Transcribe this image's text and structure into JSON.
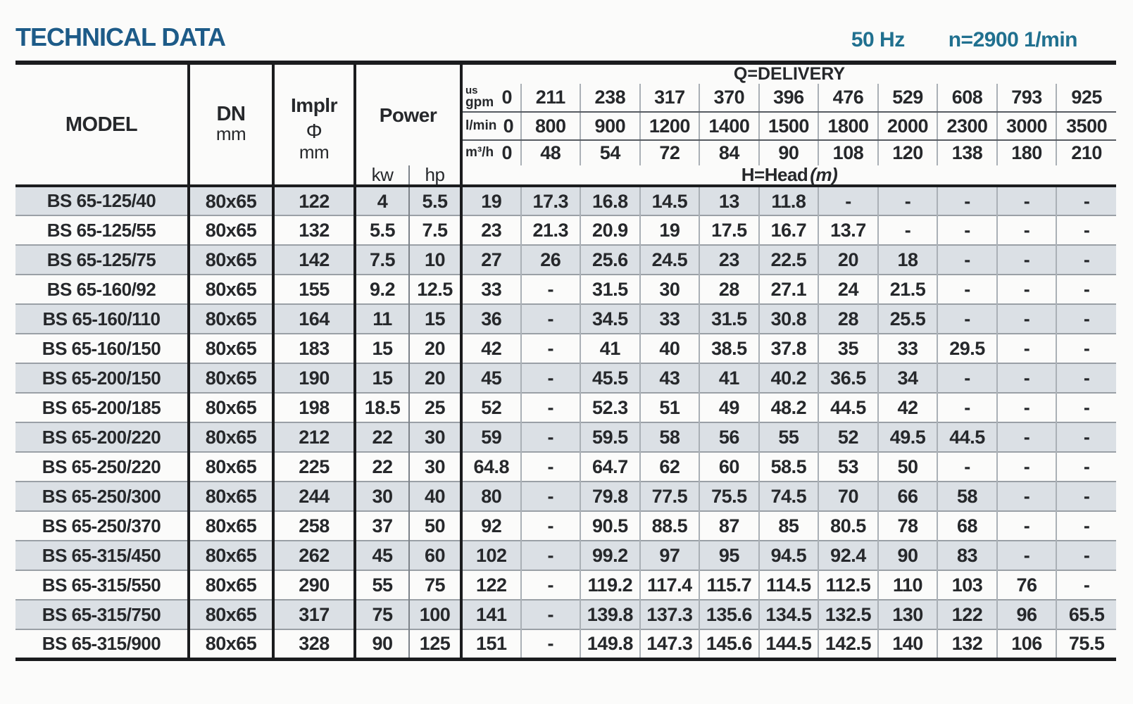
{
  "header": {
    "title": "TECHNICAL DATA",
    "frequency": "50 Hz",
    "speed": "n=2900 1/min"
  },
  "table": {
    "model_header": "MODEL",
    "dn_header": "DN",
    "dn_unit": "mm",
    "implr_header": "Implr",
    "implr_symbol": "Φ",
    "implr_unit": "mm",
    "power_header": "Power",
    "power_kw": "kw",
    "power_hp": "hp",
    "delivery_title": "Q=DELIVERY",
    "head_label": "H=Head",
    "head_unit": "(m)",
    "unit_rows": [
      {
        "label_top": "us",
        "label": "gpm",
        "values": [
          "0",
          "211",
          "238",
          "317",
          "370",
          "396",
          "476",
          "529",
          "608",
          "793",
          "925"
        ]
      },
      {
        "label_top": "",
        "label": "l/min",
        "values": [
          "0",
          "800",
          "900",
          "1200",
          "1400",
          "1500",
          "1800",
          "2000",
          "2300",
          "3000",
          "3500"
        ]
      },
      {
        "label_top": "",
        "label": "m³/h",
        "values": [
          "0",
          "48",
          "54",
          "72",
          "84",
          "90",
          "108",
          "120",
          "138",
          "180",
          "210"
        ]
      }
    ],
    "rows": [
      {
        "model": "BS 65-125/40",
        "dn": "80x65",
        "implr": "122",
        "kw": "4",
        "hp": "5.5",
        "head": [
          "19",
          "17.3",
          "16.8",
          "14.5",
          "13",
          "11.8",
          "-",
          "-",
          "-",
          "-",
          "-"
        ]
      },
      {
        "model": "BS 65-125/55",
        "dn": "80x65",
        "implr": "132",
        "kw": "5.5",
        "hp": "7.5",
        "head": [
          "23",
          "21.3",
          "20.9",
          "19",
          "17.5",
          "16.7",
          "13.7",
          "-",
          "-",
          "-",
          "-"
        ]
      },
      {
        "model": "BS 65-125/75",
        "dn": "80x65",
        "implr": "142",
        "kw": "7.5",
        "hp": "10",
        "head": [
          "27",
          "26",
          "25.6",
          "24.5",
          "23",
          "22.5",
          "20",
          "18",
          "-",
          "-",
          "-"
        ]
      },
      {
        "model": "BS 65-160/92",
        "dn": "80x65",
        "implr": "155",
        "kw": "9.2",
        "hp": "12.5",
        "head": [
          "33",
          "-",
          "31.5",
          "30",
          "28",
          "27.1",
          "24",
          "21.5",
          "-",
          "-",
          "-"
        ]
      },
      {
        "model": "BS 65-160/110",
        "dn": "80x65",
        "implr": "164",
        "kw": "11",
        "hp": "15",
        "head": [
          "36",
          "-",
          "34.5",
          "33",
          "31.5",
          "30.8",
          "28",
          "25.5",
          "-",
          "-",
          "-"
        ]
      },
      {
        "model": "BS 65-160/150",
        "dn": "80x65",
        "implr": "183",
        "kw": "15",
        "hp": "20",
        "head": [
          "42",
          "-",
          "41",
          "40",
          "38.5",
          "37.8",
          "35",
          "33",
          "29.5",
          "-",
          "-"
        ]
      },
      {
        "model": "BS 65-200/150",
        "dn": "80x65",
        "implr": "190",
        "kw": "15",
        "hp": "20",
        "head": [
          "45",
          "-",
          "45.5",
          "43",
          "41",
          "40.2",
          "36.5",
          "34",
          "-",
          "-",
          "-"
        ]
      },
      {
        "model": "BS 65-200/185",
        "dn": "80x65",
        "implr": "198",
        "kw": "18.5",
        "hp": "25",
        "head": [
          "52",
          "-",
          "52.3",
          "51",
          "49",
          "48.2",
          "44.5",
          "42",
          "-",
          "-",
          "-"
        ]
      },
      {
        "model": "BS 65-200/220",
        "dn": "80x65",
        "implr": "212",
        "kw": "22",
        "hp": "30",
        "head": [
          "59",
          "-",
          "59.5",
          "58",
          "56",
          "55",
          "52",
          "49.5",
          "44.5",
          "-",
          "-"
        ]
      },
      {
        "model": "BS 65-250/220",
        "dn": "80x65",
        "implr": "225",
        "kw": "22",
        "hp": "30",
        "head": [
          "64.8",
          "-",
          "64.7",
          "62",
          "60",
          "58.5",
          "53",
          "50",
          "-",
          "-",
          "-"
        ]
      },
      {
        "model": "BS 65-250/300",
        "dn": "80x65",
        "implr": "244",
        "kw": "30",
        "hp": "40",
        "head": [
          "80",
          "-",
          "79.8",
          "77.5",
          "75.5",
          "74.5",
          "70",
          "66",
          "58",
          "-",
          "-"
        ]
      },
      {
        "model": "BS 65-250/370",
        "dn": "80x65",
        "implr": "258",
        "kw": "37",
        "hp": "50",
        "head": [
          "92",
          "-",
          "90.5",
          "88.5",
          "87",
          "85",
          "80.5",
          "78",
          "68",
          "-",
          "-"
        ]
      },
      {
        "model": "BS 65-315/450",
        "dn": "80x65",
        "implr": "262",
        "kw": "45",
        "hp": "60",
        "head": [
          "102",
          "-",
          "99.2",
          "97",
          "95",
          "94.5",
          "92.4",
          "90",
          "83",
          "-",
          "-"
        ]
      },
      {
        "model": "BS 65-315/550",
        "dn": "80x65",
        "implr": "290",
        "kw": "55",
        "hp": "75",
        "head": [
          "122",
          "-",
          "119.2",
          "117.4",
          "115.7",
          "114.5",
          "112.5",
          "110",
          "103",
          "76",
          "-"
        ]
      },
      {
        "model": "BS 65-315/750",
        "dn": "80x65",
        "implr": "317",
        "kw": "75",
        "hp": "100",
        "head": [
          "141",
          "-",
          "139.8",
          "137.3",
          "135.6",
          "134.5",
          "132.5",
          "130",
          "122",
          "96",
          "65.5"
        ]
      },
      {
        "model": "BS 65-315/900",
        "dn": "80x65",
        "implr": "328",
        "kw": "90",
        "hp": "125",
        "head": [
          "151",
          "-",
          "149.8",
          "147.3",
          "145.6",
          "144.5",
          "142.5",
          "140",
          "132",
          "106",
          "75.5"
        ]
      }
    ]
  },
  "colors": {
    "title": "#1d5b88",
    "accent": "#20708f",
    "stripe": "#dbe0e5",
    "border_dark": "#1b1c1e"
  }
}
